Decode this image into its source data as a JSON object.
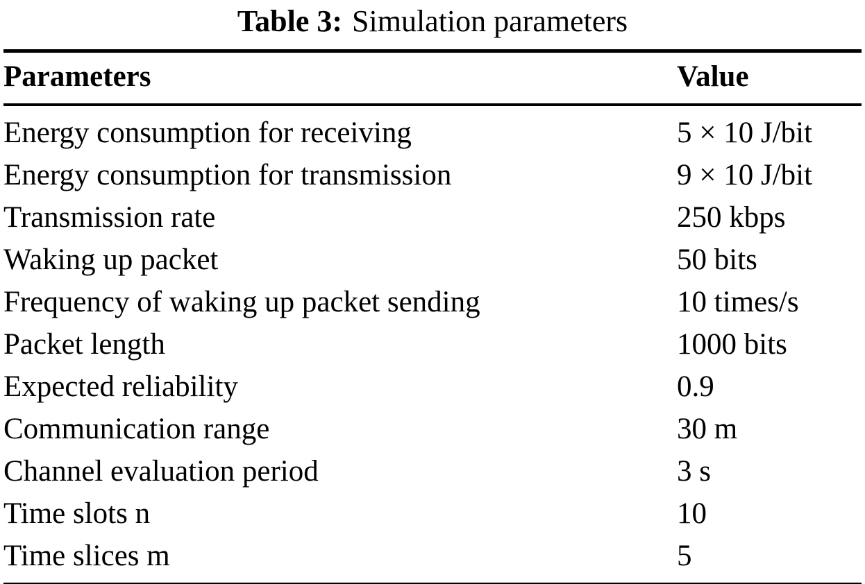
{
  "table": {
    "caption_label": "Table 3:",
    "caption_text": "Simulation parameters",
    "columns": [
      "Parameters",
      "Value"
    ],
    "rows": [
      {
        "parameter": "Energy consumption for receiving",
        "value": "5 × 10 J/bit"
      },
      {
        "parameter": "Energy consumption for transmission",
        "value": "9 × 10 J/bit"
      },
      {
        "parameter": "Transmission rate",
        "value": "250 kbps"
      },
      {
        "parameter": "Waking up packet",
        "value": "50 bits"
      },
      {
        "parameter": "Frequency of waking up packet sending",
        "value": "10 times/s"
      },
      {
        "parameter": "Packet length",
        "value": "1000 bits"
      },
      {
        "parameter": "Expected reliability",
        "value": "0.9"
      },
      {
        "parameter": "Communication range",
        "value": "30 m"
      },
      {
        "parameter": "Channel evaluation period",
        "value": "3 s"
      },
      {
        "parameter": "Time slots n",
        "value": "10"
      },
      {
        "parameter": "Time slices m",
        "value": "5"
      }
    ]
  }
}
